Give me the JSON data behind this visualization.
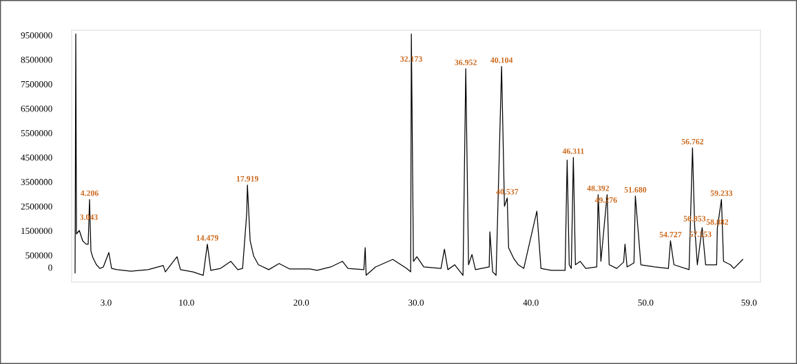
{
  "chart_data": {
    "type": "line",
    "x": [
      0.3,
      0.36,
      0.42,
      0.67,
      0.96,
      1.26,
      1.44,
      1.56,
      1.68,
      1.86,
      2.16,
      2.46,
      2.76,
      3.24,
      3.48,
      3.96,
      5.16,
      6.66,
      7.98,
      8.16,
      9.18,
      9.48,
      10.56,
      11.46,
      11.82,
      12.12,
      12.97,
      13.87,
      14.47,
      14.89,
      15.25,
      15.31,
      15.55,
      15.85,
      16.27,
      17.17,
      18.07,
      18.97,
      20.77,
      21.37,
      22.57,
      23.59,
      24.07,
      25.45,
      25.57,
      25.65,
      26.47,
      27.97,
      29.17,
      29.53,
      29.59,
      29.77,
      30.07,
      30.67,
      32.17,
      32.47,
      32.77,
      33.37,
      33.85,
      34.09,
      34.33,
      34.57,
      34.87,
      35.17,
      36.37,
      36.43,
      36.67,
      36.97,
      37.45,
      37.7,
      37.94,
      38.06,
      38.48,
      38.9,
      39.38,
      40.52,
      40.88,
      41.78,
      42.98,
      43.16,
      43.34,
      43.52,
      43.7,
      43.88,
      44.3,
      44.78,
      45.74,
      45.86,
      46.1,
      46.64,
      46.82,
      47.48,
      48.08,
      48.2,
      48.38,
      48.98,
      49.1,
      49.4,
      49.58,
      50.78,
      51.98,
      52.16,
      52.46,
      53.78,
      54.08,
      54.26,
      54.5,
      54.92,
      55.22,
      56.18,
      56.24,
      56.6,
      56.78,
      57.38,
      57.68,
      58.46
    ],
    "series": [
      {
        "color": "#000000",
        "values": [
          -230000,
          9550000,
          1370000,
          1510000,
          1090000,
          950000,
          950000,
          2780000,
          670000,
          390000,
          110000,
          -40000,
          20000,
          610000,
          -40000,
          -90000,
          -150000,
          -90000,
          80000,
          -180000,
          440000,
          -90000,
          -180000,
          -320000,
          950000,
          -120000,
          -40000,
          250000,
          -90000,
          -40000,
          2220000,
          3370000,
          1090000,
          470000,
          110000,
          -90000,
          160000,
          -60000,
          -60000,
          -120000,
          20000,
          250000,
          -40000,
          -90000,
          810000,
          -320000,
          20000,
          330000,
          -40000,
          -180000,
          9550000,
          250000,
          440000,
          20000,
          -40000,
          750000,
          -90000,
          110000,
          -180000,
          -320000,
          8130000,
          110000,
          530000,
          -90000,
          20000,
          1460000,
          -180000,
          -320000,
          8220000,
          2500000,
          2840000,
          810000,
          390000,
          110000,
          -40000,
          2300000,
          -40000,
          -120000,
          -120000,
          4390000,
          110000,
          -40000,
          4500000,
          110000,
          250000,
          -40000,
          20000,
          2980000,
          250000,
          2980000,
          110000,
          -40000,
          220000,
          950000,
          20000,
          190000,
          2920000,
          1180000,
          110000,
          20000,
          -40000,
          1090000,
          110000,
          -90000,
          4890000,
          1740000,
          110000,
          1630000,
          110000,
          110000,
          1600000,
          2780000,
          250000,
          110000,
          -40000,
          330000
        ]
      }
    ],
    "xlim": [
      0,
      60
    ],
    "ylim": [
      -600000,
      9700000
    ],
    "xticks": [
      {
        "value": 3,
        "label": "3.0"
      },
      {
        "value": 10,
        "label": "10.0"
      },
      {
        "value": 20,
        "label": "20.0"
      },
      {
        "value": 30,
        "label": "30.0"
      },
      {
        "value": 40,
        "label": "40.0"
      },
      {
        "value": 50,
        "label": "50.0"
      },
      {
        "value": 59,
        "label": "59.0"
      }
    ],
    "yticks": [
      0,
      500000,
      1500000,
      2500000,
      3500000,
      4500000,
      5500000,
      6500000,
      7500000,
      8500000,
      9500000
    ],
    "grid": false,
    "marker": "none",
    "line_style": "solid",
    "annotations": [
      {
        "text": "3.043",
        "x": 1.496,
        "y": 1800000
      },
      {
        "text": "4.206",
        "x": 1.56,
        "y": 2780000
      },
      {
        "text": "14.479",
        "x": 11.82,
        "y": 950000
      },
      {
        "text": "17.919",
        "x": 15.31,
        "y": 3370000
      },
      {
        "text": "32.173",
        "x": 29.582,
        "y": 8270000
      },
      {
        "text": "36.952",
        "x": 34.33,
        "y": 8130000
      },
      {
        "text": "40.104",
        "x": 37.45,
        "y": 8220000
      },
      {
        "text": "40.537",
        "x": 37.94,
        "y": 2840000
      },
      {
        "text": "46.311",
        "x": 43.7,
        "y": 4500000
      },
      {
        "text": "48.392",
        "x": 45.86,
        "y": 2980000
      },
      {
        "text": "49.276",
        "x": 46.545,
        "y": 2500000
      },
      {
        "text": "51.680",
        "x": 49.1,
        "y": 2920000
      },
      {
        "text": "54.727",
        "x": 52.16,
        "y": 1090000
      },
      {
        "text": "56.853",
        "x": 54.26,
        "y": 1740000
      },
      {
        "text": "56.762",
        "x": 54.08,
        "y": 4890000
      },
      {
        "text": "57.553",
        "x": 54.77,
        "y": 1100000
      },
      {
        "text": "58.882",
        "x": 56.24,
        "y": 1600000
      },
      {
        "text": "59.233",
        "x": 56.6,
        "y": 2780000
      }
    ]
  }
}
